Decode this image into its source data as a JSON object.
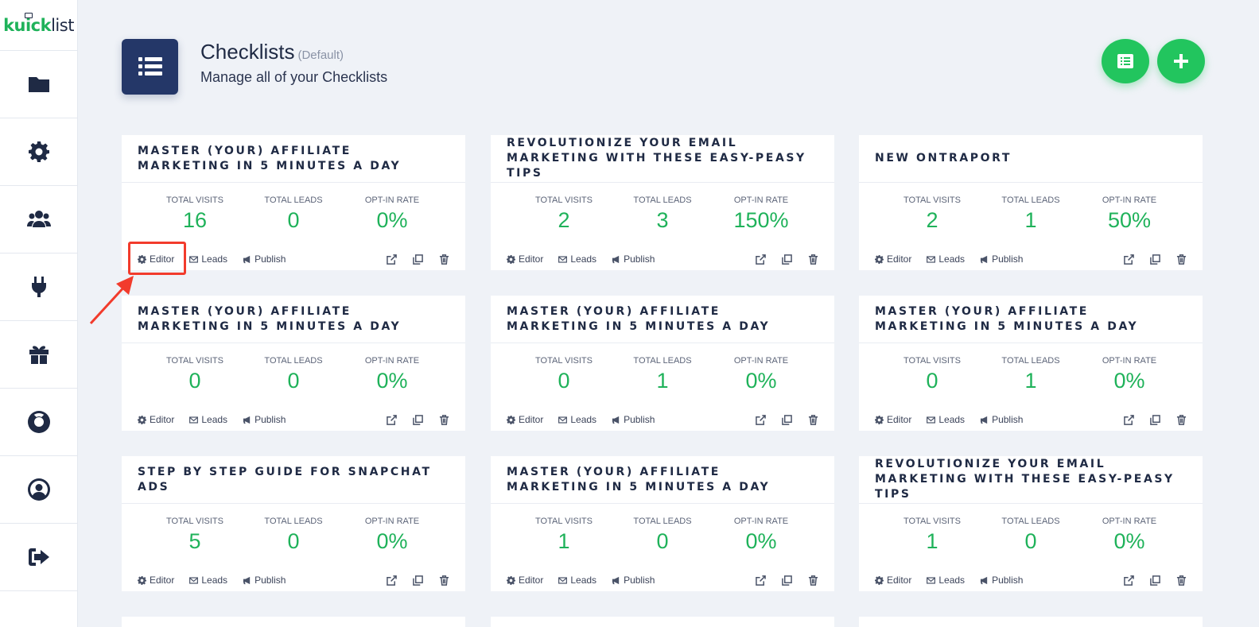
{
  "brand": {
    "logo_part1": "kuick",
    "logo_part2": "list"
  },
  "sidebar": {
    "items": [
      {
        "name": "folder-icon"
      },
      {
        "name": "gear-icon"
      },
      {
        "name": "users-icon"
      },
      {
        "name": "plug-icon"
      },
      {
        "name": "gift-icon"
      },
      {
        "name": "lifebuoy-icon"
      },
      {
        "name": "user-circle-icon"
      },
      {
        "name": "sign-out-icon"
      }
    ]
  },
  "header": {
    "title": "Checklists",
    "title_tag": "(Default)",
    "subtitle": "Manage all of your Checklists"
  },
  "colors": {
    "accent_green": "#22c55e",
    "navy": "#243768",
    "highlight_red": "#f23b2c"
  },
  "stat_labels": {
    "visits": "TOTAL VISITS",
    "leads": "TOTAL LEADS",
    "rate": "OPT-IN RATE"
  },
  "actions": {
    "editor": "Editor",
    "leads": "Leads",
    "publish": "Publish"
  },
  "cards": [
    {
      "title": "MASTER (YOUR) AFFILIATE MARKETING IN 5 MINUTES A DAY",
      "visits": "16",
      "leads": "0",
      "rate": "0%"
    },
    {
      "title": "REVOLUTIONIZE YOUR EMAIL MARKETING WITH THESE EASY-PEASY TIPS",
      "visits": "2",
      "leads": "3",
      "rate": "150%"
    },
    {
      "title": "NEW ONTRAPORT",
      "visits": "2",
      "leads": "1",
      "rate": "50%"
    },
    {
      "title": "MASTER (YOUR) AFFILIATE MARKETING IN 5 MINUTES A DAY",
      "visits": "0",
      "leads": "0",
      "rate": "0%"
    },
    {
      "title": "MASTER (YOUR) AFFILIATE MARKETING IN 5 MINUTES A DAY",
      "visits": "0",
      "leads": "1",
      "rate": "0%"
    },
    {
      "title": "MASTER (YOUR) AFFILIATE MARKETING IN 5 MINUTES A DAY",
      "visits": "0",
      "leads": "1",
      "rate": "0%"
    },
    {
      "title": "STEP BY STEP GUIDE FOR SNAPCHAT ADS",
      "visits": "5",
      "leads": "0",
      "rate": "0%"
    },
    {
      "title": "MASTER (YOUR) AFFILIATE MARKETING IN 5 MINUTES A DAY",
      "visits": "1",
      "leads": "0",
      "rate": "0%"
    },
    {
      "title": "REVOLUTIONIZE YOUR EMAIL MARKETING WITH THESE EASY-PEASY TIPS",
      "visits": "1",
      "leads": "0",
      "rate": "0%"
    }
  ]
}
